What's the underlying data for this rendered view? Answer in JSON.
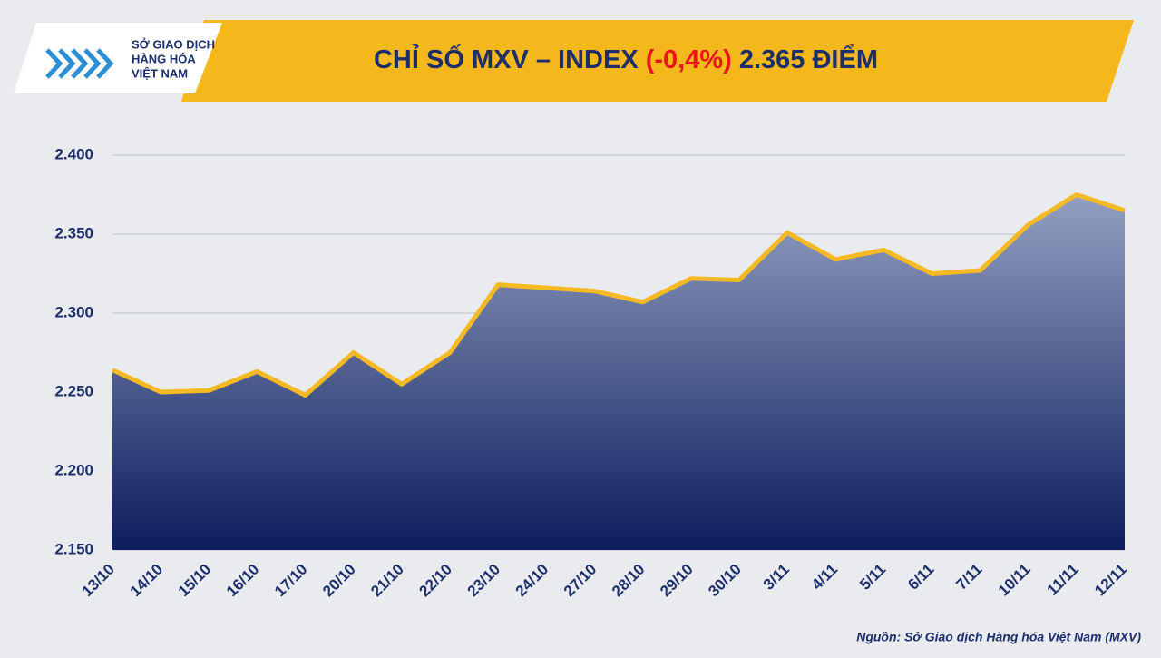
{
  "header": {
    "logo_lines": [
      "SỞ GIAO DỊCH",
      "HÀNG HÓA",
      "VIỆT NAM"
    ]
  },
  "chart_data": {
    "type": "area",
    "title": [
      "CHỈ SỐ MXV – INDEX",
      "(-0,4%)",
      "2.365 ĐIỂM"
    ],
    "title_colors": [
      "#1d2f6b",
      "#e8151b",
      "#1d2f6b"
    ],
    "categories": [
      "13/10",
      "14/10",
      "15/10",
      "16/10",
      "17/10",
      "20/10",
      "21/10",
      "22/10",
      "23/10",
      "24/10",
      "27/10",
      "28/10",
      "29/10",
      "30/10",
      "3/11",
      "4/11",
      "5/11",
      "6/11",
      "7/11",
      "10/11",
      "11/11",
      "12/11"
    ],
    "values": [
      2264,
      2250,
      2251,
      2263,
      2248,
      2275,
      2255,
      2275,
      2318,
      2316,
      2314,
      2307,
      2322,
      2321,
      2351,
      2334,
      2340,
      2325,
      2327,
      2356,
      2375,
      2365
    ],
    "color": "#f5b923",
    "fill_colors": [
      "#93a0c2",
      "#0b1d5c"
    ],
    "ylim": [
      2150,
      2400
    ],
    "yticks": [
      {
        "value": 2150,
        "label": "2.150"
      },
      {
        "value": 2200,
        "label": "2.200"
      },
      {
        "value": 2250,
        "label": "2.250"
      },
      {
        "value": 2300,
        "label": "2.300"
      },
      {
        "value": 2350,
        "label": "2.350"
      },
      {
        "value": 2400,
        "label": "2.400"
      }
    ],
    "grid": true,
    "source": "Nguồn: Sở Giao dịch Hàng hóa Việt Nam (MXV)"
  }
}
